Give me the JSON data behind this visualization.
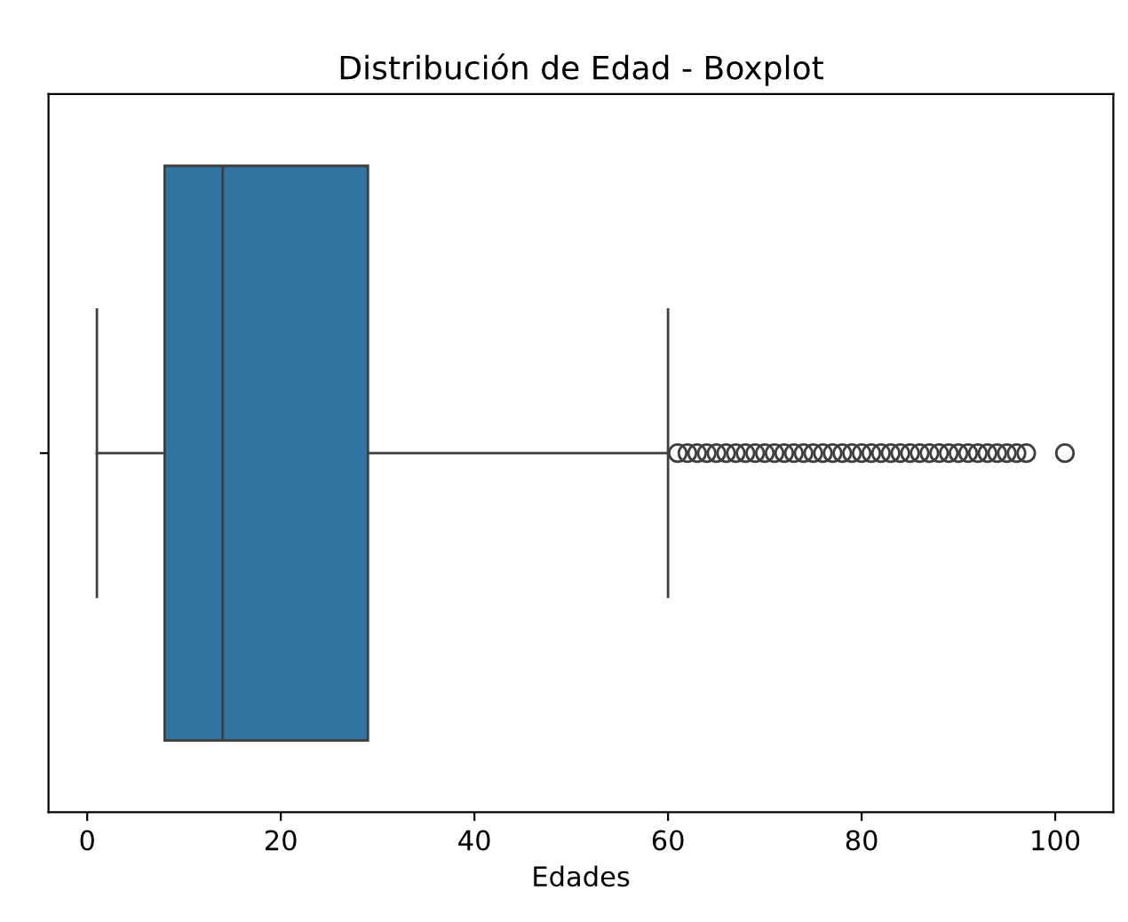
{
  "chart_data": {
    "type": "box",
    "title": "Distribución de Edad - Boxplot",
    "xlabel": "Edades",
    "orientation": "horizontal",
    "categories": [
      null
    ],
    "color": "#3274a1",
    "boxes": [
      {
        "low": 1,
        "q1": 8,
        "median": 14,
        "q3": 29,
        "high": 60,
        "outliers": [
          61,
          62,
          63,
          64,
          65,
          66,
          67,
          68,
          69,
          70,
          71,
          72,
          73,
          74,
          75,
          76,
          77,
          78,
          79,
          80,
          81,
          82,
          83,
          84,
          85,
          86,
          87,
          88,
          89,
          90,
          91,
          92,
          93,
          94,
          95,
          96,
          97,
          101
        ]
      }
    ],
    "xlim": [
      -4,
      106
    ],
    "xticks": [
      0,
      20,
      40,
      60,
      80,
      100
    ],
    "grid": false
  }
}
